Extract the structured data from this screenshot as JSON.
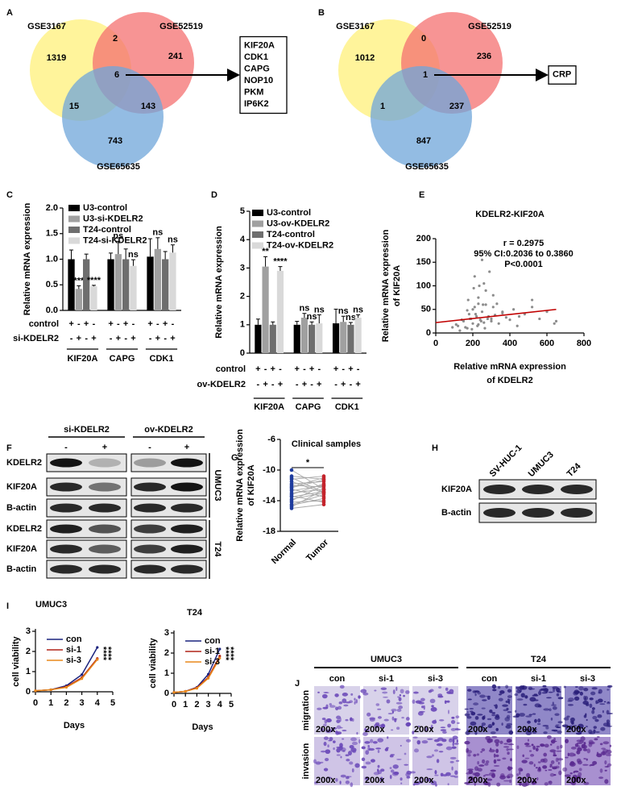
{
  "panel_labels": [
    "A",
    "B",
    "C",
    "D",
    "E",
    "F",
    "G",
    "H",
    "I",
    "J"
  ],
  "venn_diagrams": [
    {
      "sets": [
        "GSE3167",
        "GSE52519",
        "GSE65635"
      ],
      "set_colors": [
        "#fff07a",
        "#f47070",
        "#6fa6da"
      ],
      "highlight_color": "#c00000",
      "counts": [
        1319,
        2,
        241,
        15,
        6,
        143,
        743
      ],
      "genes": [
        "KIF20A",
        "CDK1",
        "CAPG",
        "NOP10",
        "PKM",
        "IP6K2"
      ]
    },
    {
      "sets": [
        "GSE3167",
        "GSE52519",
        "GSE65635"
      ],
      "set_colors": [
        "#fff07a",
        "#f47070",
        "#6fa6da"
      ],
      "highlight_color": "#c00000",
      "counts": [
        1012,
        0,
        236,
        1,
        1,
        237,
        847
      ],
      "genes": [
        "CRP"
      ]
    }
  ],
  "chart_data": [
    {
      "type": "bar",
      "ylabel": "Relative mRNA expression",
      "categories": [
        "KIF20A",
        "CAPG",
        "CDK1"
      ],
      "ylim": [
        0,
        2
      ],
      "yticks": [
        {
          "value": 0,
          "label": "0.0"
        },
        0.5,
        {
          "value": 1,
          "label": "1.0"
        },
        1.5,
        {
          "value": 2,
          "label": "2.0"
        }
      ],
      "series": [
        {
          "name": "U3-control",
          "color": "#000000",
          "values": [
            1.0,
            1.0,
            1.05
          ],
          "errors": [
            0.18,
            0.12,
            0.35
          ],
          "annotations": [
            null,
            null,
            null
          ]
        },
        {
          "name": "U3-si-KDELR2",
          "color": "#a0a0a0",
          "values": [
            0.42,
            1.1,
            1.2
          ],
          "errors": [
            0.06,
            0.25,
            0.22
          ],
          "annotations": [
            "***",
            "ns",
            "ns"
          ]
        },
        {
          "name": "T24-control",
          "color": "#6e6e6e",
          "values": [
            1.0,
            1.0,
            1.0
          ],
          "errors": [
            0.1,
            0.2,
            0.15
          ],
          "annotations": [
            null,
            null,
            null
          ]
        },
        {
          "name": "T24-si-KDELR2",
          "color": "#d9d9d9",
          "values": [
            0.47,
            0.87,
            1.13
          ],
          "errors": [
            0.02,
            0.12,
            0.15
          ],
          "annotations": [
            "****",
            "ns",
            "ns"
          ]
        }
      ],
      "conditions": [
        {
          "label": "control",
          "signs": [
            "+",
            "-",
            "+",
            "-"
          ]
        },
        {
          "label": "si-KDELR2",
          "signs": [
            "-",
            "+",
            "-",
            "+"
          ]
        }
      ]
    },
    {
      "type": "bar",
      "ylabel": "Relative mRNA expression",
      "categories": [
        "KIF20A",
        "CAPG",
        "CDK1"
      ],
      "ylim": [
        0,
        5
      ],
      "yticks": [
        0,
        1,
        2,
        3,
        4,
        5
      ],
      "series": [
        {
          "name": "U3-control",
          "color": "#000000",
          "values": [
            1.0,
            1.0,
            1.05
          ],
          "errors": [
            0.2,
            0.12,
            0.5
          ],
          "annotations": [
            null,
            null,
            null
          ]
        },
        {
          "name": "U3-ov-KDELR2",
          "color": "#a0a0a0",
          "values": [
            3.05,
            1.25,
            1.1
          ],
          "errors": [
            0.35,
            0.15,
            0.2
          ],
          "annotations": [
            "**",
            "ns",
            "ns"
          ]
        },
        {
          "name": "T24-control",
          "color": "#6e6e6e",
          "values": [
            1.0,
            1.0,
            1.0
          ],
          "errors": [
            0.1,
            0.1,
            0.08
          ],
          "annotations": [
            null,
            "ns",
            "ns"
          ]
        },
        {
          "name": "T24-ov-KDELR2",
          "color": "#d9d9d9",
          "values": [
            2.9,
            1.05,
            1.25
          ],
          "errors": [
            0.15,
            0.3,
            0.1
          ],
          "annotations": [
            "****",
            "ns",
            "ns"
          ]
        }
      ],
      "conditions": [
        {
          "label": "control",
          "signs": [
            "+",
            "-",
            "+",
            "-"
          ]
        },
        {
          "label": "ov-KDELR2",
          "signs": [
            "-",
            "+",
            "-",
            "+"
          ]
        }
      ]
    },
    {
      "type": "scatter",
      "title": "KDELR2-KIF20A",
      "xlabel": [
        "Relative mRNA expression",
        "of KDELR2"
      ],
      "ylabel": [
        "Relative mRNA expression",
        "of KIF20A"
      ],
      "annotations": [
        "r = 0.2975",
        "95% CI:0.2036 to 0.3860",
        "P<0.0001"
      ],
      "xlim": [
        0,
        800
      ],
      "xticks": [
        0,
        200,
        400,
        600,
        800
      ],
      "ylim": [
        0,
        200
      ],
      "yticks": [
        0,
        50,
        100,
        150,
        200
      ],
      "color": "#8c8c8c",
      "x": [
        120,
        150,
        170,
        180,
        190,
        200,
        210,
        220,
        230,
        240,
        250,
        260,
        270,
        280,
        300,
        320,
        340,
        360,
        380,
        400,
        420,
        450,
        480,
        520,
        560,
        600,
        640,
        130,
        160,
        175,
        195,
        205,
        215,
        225,
        235,
        245,
        255,
        265,
        285,
        310,
        110,
        140,
        185,
        200,
        230,
        260,
        290,
        310,
        90,
        520,
        250,
        210,
        230,
        270,
        300,
        360,
        650,
        170,
        330,
        440
      ],
      "y": [
        15,
        25,
        10,
        40,
        30,
        20,
        55,
        35,
        18,
        28,
        45,
        22,
        60,
        30,
        25,
        38,
        20,
        42,
        33,
        28,
        50,
        35,
        40,
        70,
        30,
        45,
        20,
        5,
        12,
        70,
        8,
        95,
        40,
        15,
        100,
        25,
        60,
        10,
        35,
        55,
        18,
        28,
        30,
        50,
        62,
        105,
        130,
        80,
        12,
        55,
        155,
        120,
        75,
        90,
        30,
        45,
        25,
        48,
        62,
        15
      ],
      "trendline": {
        "color": "#c00000",
        "x": [
          0,
          650
        ],
        "y": [
          22,
          50
        ]
      }
    },
    {
      "type": "paired",
      "title": "Clinical samples",
      "ylabel": [
        "Relative mRNA expression",
        "of KIF20A"
      ],
      "categories": [
        "Normal",
        "Tumor"
      ],
      "colors": [
        "#1f3c9e",
        "#c4242c"
      ],
      "line_color": "#a8a8a8",
      "annotation": "*",
      "ylim": [
        -18,
        -6
      ],
      "yticks": [
        -18,
        -14,
        -10,
        -6
      ],
      "pairs": [
        [
          -10,
          -12.5
        ],
        [
          -10.8,
          -11.2
        ],
        [
          -11.2,
          -10.8
        ],
        [
          -11.5,
          -13
        ],
        [
          -11.8,
          -11.5
        ],
        [
          -12,
          -12.2
        ],
        [
          -12.2,
          -11
        ],
        [
          -12.5,
          -13.5
        ],
        [
          -12.7,
          -12
        ],
        [
          -13,
          -12.5
        ],
        [
          -13.2,
          -11.8
        ],
        [
          -13.5,
          -12.8
        ],
        [
          -13.8,
          -13
        ],
        [
          -14,
          -12
        ],
        [
          -14.2,
          -14
        ],
        [
          -14.5,
          -13.2
        ],
        [
          -14.8,
          -12.6
        ],
        [
          -15,
          -14.5
        ],
        [
          -12.3,
          -11.3
        ],
        [
          -13.4,
          -14.2
        ],
        [
          -11,
          -12.9
        ],
        [
          -14.6,
          -13.7
        ]
      ]
    },
    {
      "type": "line",
      "title": "UMUC3",
      "xlabel": "Days",
      "ylabel": "cell viability",
      "xlim": [
        0,
        5
      ],
      "xticks": [
        0,
        1,
        2,
        3,
        4,
        5
      ],
      "ylim": [
        0,
        3
      ],
      "yticks": [
        0,
        1,
        2,
        3
      ],
      "x": [
        0,
        1,
        2,
        3,
        4
      ],
      "series": [
        {
          "name": "con",
          "color": "#1a237e",
          "values": [
            0.05,
            0.1,
            0.3,
            0.85,
            2.2
          ]
        },
        {
          "name": "si-1",
          "color": "#b02418",
          "values": [
            0.05,
            0.1,
            0.25,
            0.7,
            1.65
          ]
        },
        {
          "name": "si-3",
          "color": "#e8891c",
          "values": [
            0.05,
            0.1,
            0.22,
            0.65,
            1.6
          ]
        }
      ],
      "annotations": [
        "****",
        "****"
      ]
    },
    {
      "type": "line",
      "title": "T24",
      "xlabel": "Days",
      "ylabel": "cell viability",
      "xlim": [
        0,
        5
      ],
      "xticks": [
        0,
        1,
        2,
        3,
        4,
        5
      ],
      "ylim": [
        0,
        3
      ],
      "yticks": [
        0,
        1,
        2,
        3
      ],
      "x": [
        0,
        1,
        2,
        3,
        4
      ],
      "series": [
        {
          "name": "con",
          "color": "#1a237e",
          "values": [
            0.05,
            0.1,
            0.3,
            0.95,
            2.2
          ]
        },
        {
          "name": "si-1",
          "color": "#b02418",
          "values": [
            0.05,
            0.1,
            0.28,
            0.8,
            1.85
          ]
        },
        {
          "name": "si-3",
          "color": "#e8891c",
          "values": [
            0.05,
            0.1,
            0.25,
            0.75,
            1.75
          ]
        }
      ],
      "annotations": [
        "****",
        "****"
      ]
    }
  ],
  "blots": [
    {
      "column_groups": [
        "si-KDELR2",
        "ov-KDELR2"
      ],
      "column_signs": [
        "-",
        "+",
        "-",
        "+"
      ],
      "rows": [
        "KDELR2",
        "KIF20A",
        "B-actin",
        "KDELR2",
        "KIF20A",
        "B-actin"
      ],
      "row_groups": [
        "UMUC3",
        "T24"
      ]
    },
    {
      "columns": [
        "SV-HUC-1",
        "UMUC3",
        "T24"
      ],
      "rows": [
        "KIF20A",
        "B-actin"
      ]
    }
  ],
  "micrographs": {
    "groups": [
      "UMUC3",
      "T24"
    ],
    "columns": [
      "con",
      "si-1",
      "si-3",
      "con",
      "si-1",
      "si-3"
    ],
    "rows": [
      "migration",
      "invasion"
    ],
    "magnification": "200x"
  }
}
